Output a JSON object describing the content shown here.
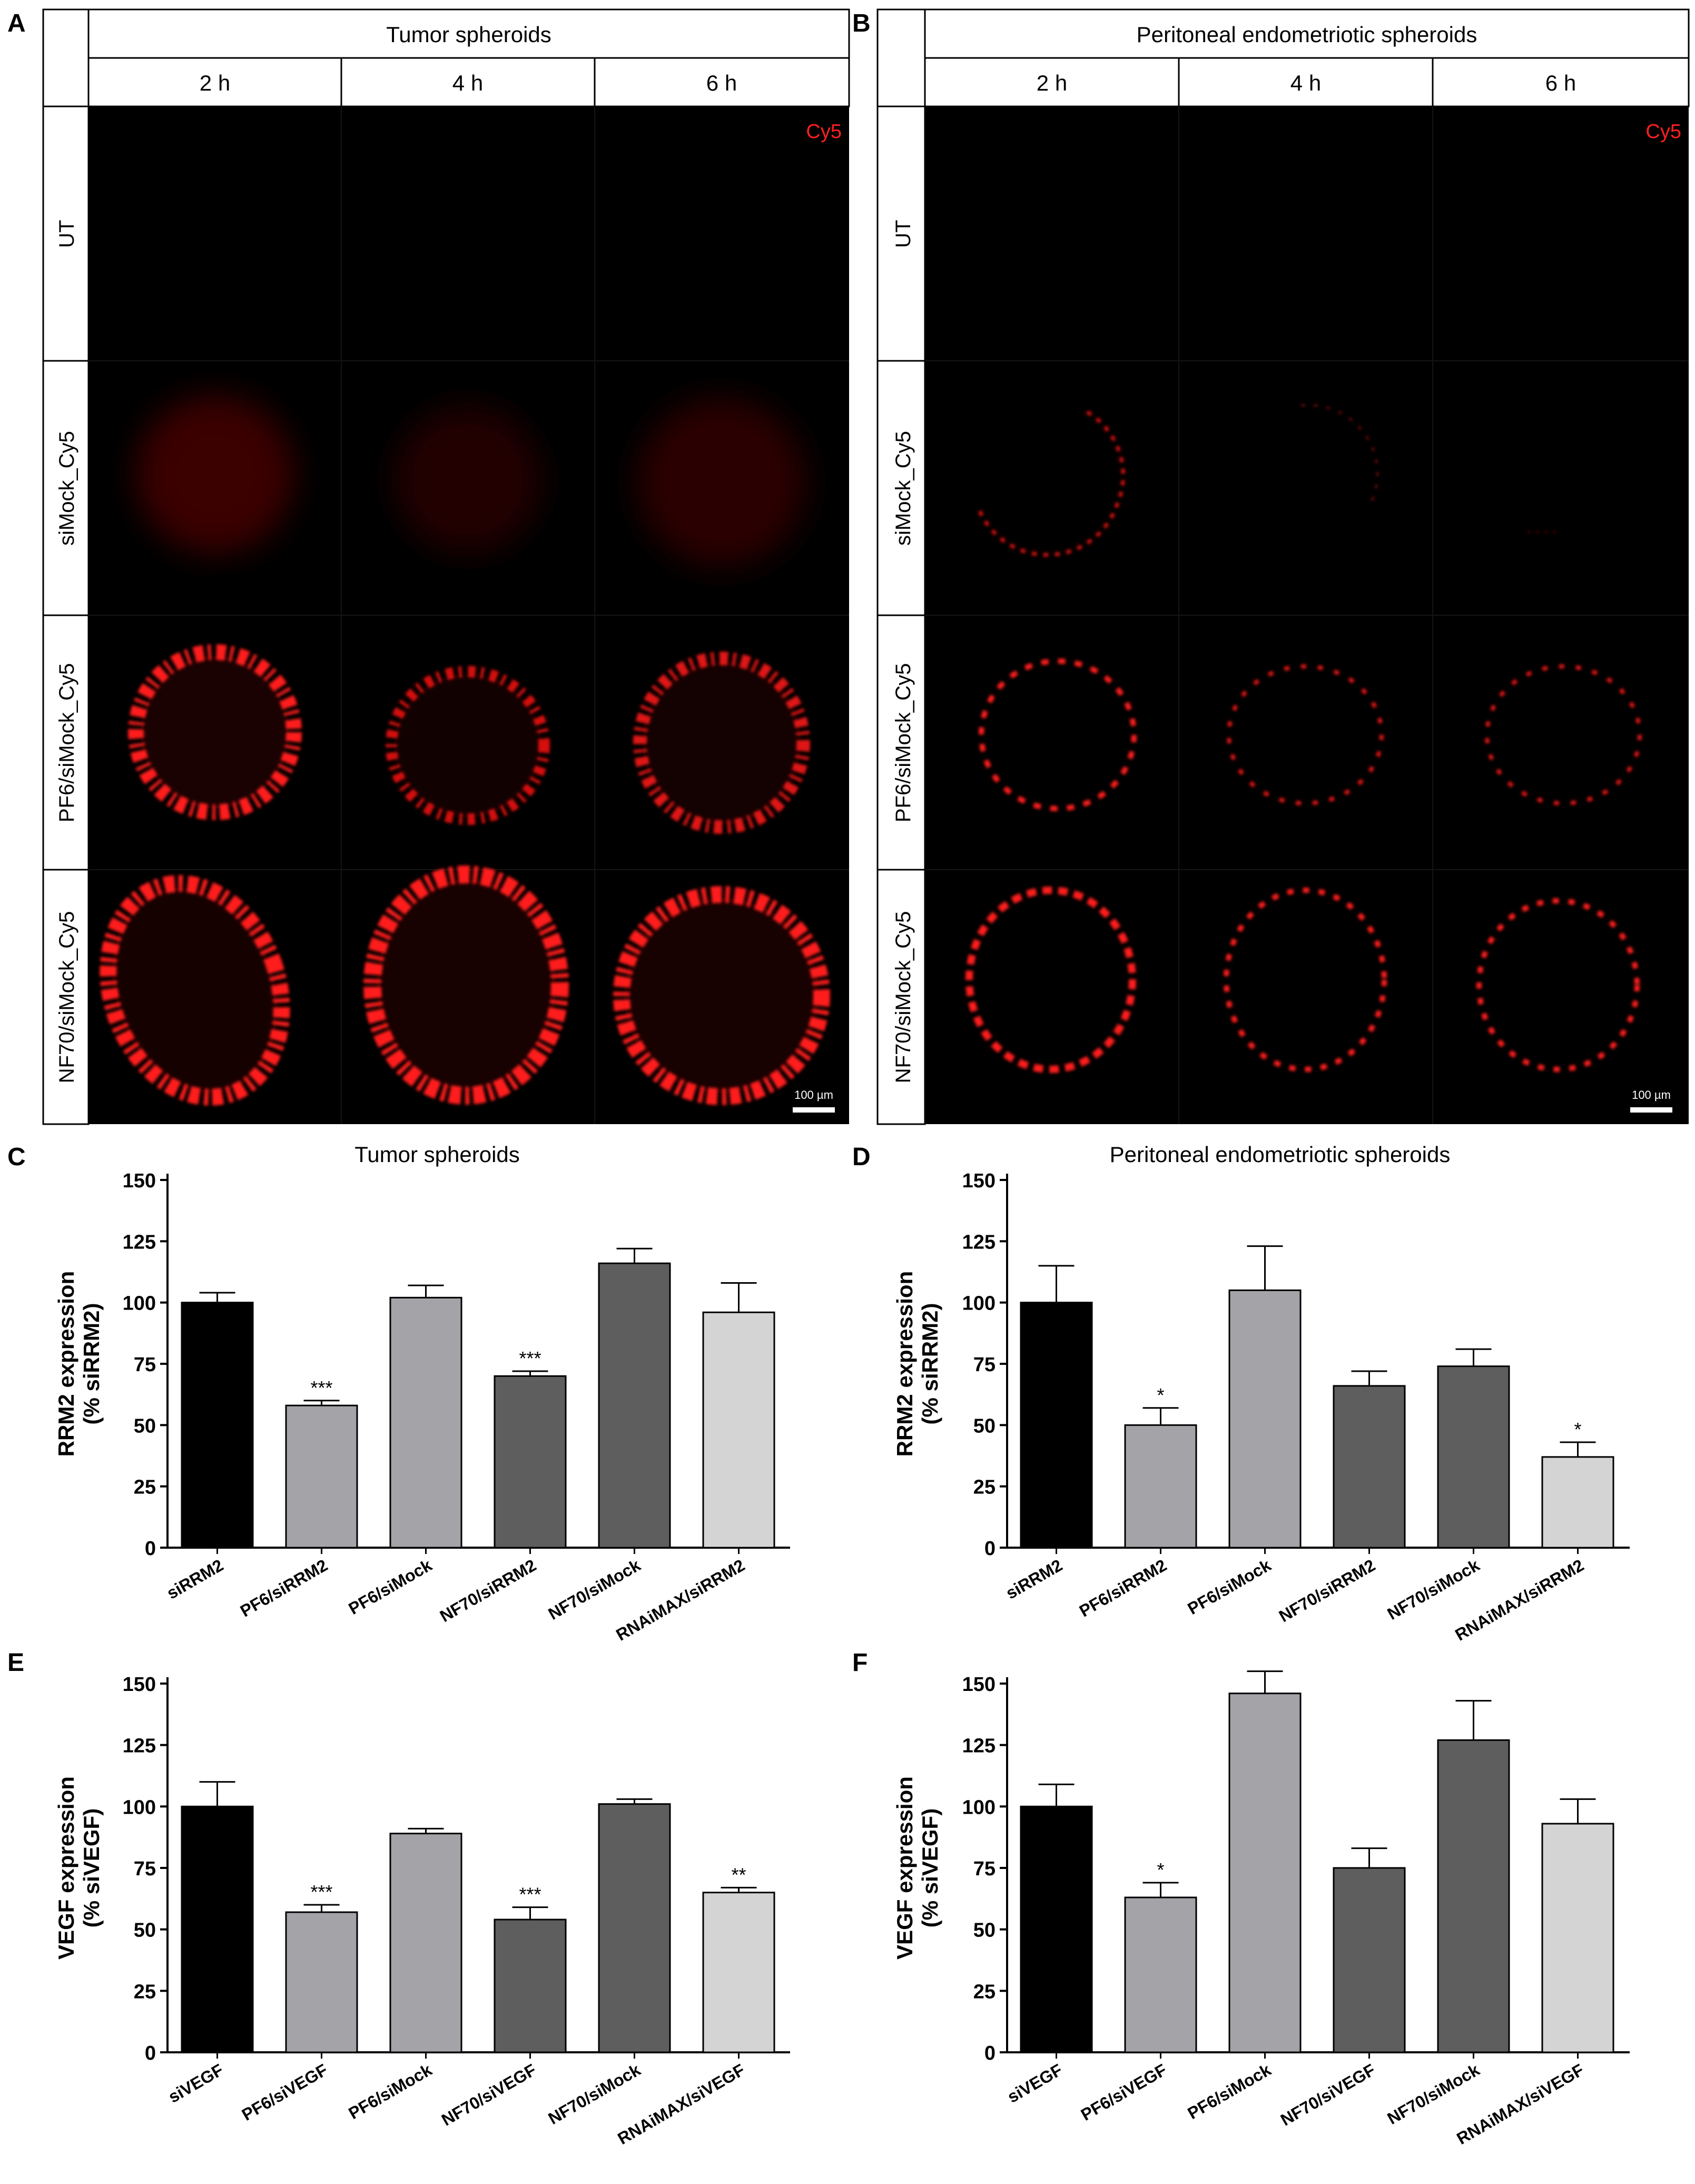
{
  "panels": {
    "A": {
      "letter": "A",
      "title": "Tumor spheroids",
      "columns": [
        "2 h",
        "4 h",
        "6 h"
      ],
      "rows": [
        "UT",
        "siMock_Cy5",
        "PF6/siMock_Cy5",
        "NF70/siMock_Cy5"
      ],
      "channel_label": "Cy5",
      "scale_bar_label": "100 µm"
    },
    "B": {
      "letter": "B",
      "title": "Peritoneal endometriotic spheroids",
      "columns": [
        "2 h",
        "4 h",
        "6 h"
      ],
      "rows": [
        "UT",
        "siMock_Cy5",
        "PF6/siMock_Cy5",
        "NF70/siMock_Cy5"
      ],
      "channel_label": "Cy5",
      "scale_bar_label": "100 µm"
    }
  },
  "colors": {
    "bar_fills": [
      "#000000",
      "#a3a3a8",
      "#a3a3a8",
      "#5e5e5e",
      "#5e5e5e",
      "#d4d4d4"
    ],
    "signal": "#ff1a1a",
    "channel_label": "#ff2020"
  },
  "chart_data": [
    {
      "panel": "C",
      "type": "bar",
      "title": "Tumor spheroids",
      "ylabel": "RRM2 expression\n(% siRRM2)",
      "ylim": [
        0,
        150
      ],
      "yticks": [
        0,
        25,
        50,
        75,
        100,
        125,
        150
      ],
      "categories": [
        "siRRM2",
        "PF6/siRRM2",
        "PF6/siMock",
        "NF70/siRRM2",
        "NF70/siMock",
        "RNAiMAX/siRRM2"
      ],
      "values": [
        100,
        58,
        102,
        70,
        116,
        96
      ],
      "errors": [
        4,
        2,
        5,
        2,
        6,
        12
      ],
      "annotations": [
        "",
        "***",
        "",
        "***",
        "",
        ""
      ]
    },
    {
      "panel": "D",
      "type": "bar",
      "title": "Peritoneal endometriotic spheroids",
      "ylabel": "RRM2 expression\n(% siRRM2)",
      "ylim": [
        0,
        150
      ],
      "yticks": [
        0,
        25,
        50,
        75,
        100,
        125,
        150
      ],
      "categories": [
        "siRRM2",
        "PF6/siRRM2",
        "PF6/siMock",
        "NF70/siRRM2",
        "NF70/siMock",
        "RNAiMAX/siRRM2"
      ],
      "values": [
        100,
        50,
        105,
        66,
        74,
        37
      ],
      "errors": [
        15,
        7,
        18,
        6,
        7,
        6
      ],
      "annotations": [
        "",
        "*",
        "",
        "",
        "",
        "*"
      ]
    },
    {
      "panel": "E",
      "type": "bar",
      "title": "",
      "ylabel": "VEGF expression\n(% siVEGF)",
      "ylim": [
        0,
        150
      ],
      "yticks": [
        0,
        25,
        50,
        75,
        100,
        125,
        150
      ],
      "categories": [
        "siVEGF",
        "PF6/siVEGF",
        "PF6/siMock",
        "NF70/siVEGF",
        "NF70/siMock",
        "RNAiMAX/siVEGF"
      ],
      "values": [
        100,
        57,
        89,
        54,
        101,
        65
      ],
      "errors": [
        10,
        3,
        2,
        5,
        2,
        2
      ],
      "annotations": [
        "",
        "***",
        "",
        "***",
        "",
        "**"
      ]
    },
    {
      "panel": "F",
      "type": "bar",
      "title": "",
      "ylabel": "VEGF expression\n(% siVEGF)",
      "ylim": [
        0,
        150
      ],
      "yticks": [
        0,
        25,
        50,
        75,
        100,
        125,
        150
      ],
      "categories": [
        "siVEGF",
        "PF6/siVEGF",
        "PF6/siMock",
        "NF70/siVEGF",
        "NF70/siMock",
        "RNAiMAX/siVEGF"
      ],
      "values": [
        100,
        63,
        146,
        75,
        127,
        93
      ],
      "errors": [
        9,
        6,
        9,
        8,
        16,
        10
      ],
      "annotations": [
        "",
        "*",
        "",
        "",
        "",
        ""
      ]
    }
  ]
}
